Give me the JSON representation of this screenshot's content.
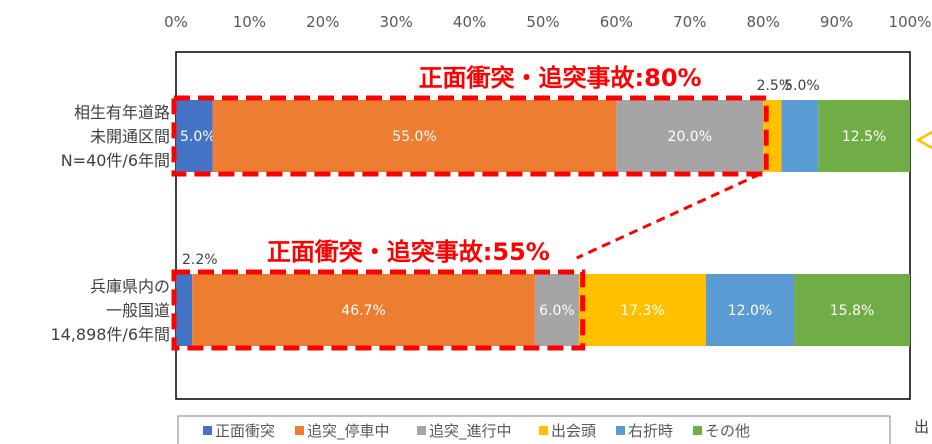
{
  "chart_data": {
    "type": "bar",
    "orientation": "horizontal",
    "stacked": true,
    "percent": true,
    "x_ticks": [
      "0%",
      "10%",
      "20%",
      "30%",
      "40%",
      "50%",
      "60%",
      "70%",
      "80%",
      "90%",
      "100%"
    ],
    "xlim": [
      0,
      100
    ],
    "categories": [
      {
        "lines": [
          "相生有年道路",
          "未開通区間",
          "N=40件/6年間"
        ]
      },
      {
        "lines": [
          "兵庫県内の",
          "一般国道",
          "14,898件/6年間"
        ]
      }
    ],
    "series": [
      {
        "name": "正面衝突",
        "color": "#4472c4",
        "values": [
          5.0,
          2.2
        ],
        "labels": [
          "5.0%",
          "2.2%"
        ]
      },
      {
        "name": "追突_停車中",
        "color": "#ed7d31",
        "values": [
          55.0,
          46.7
        ],
        "labels": [
          "55.0%",
          "46.7%"
        ]
      },
      {
        "name": "追突_進行中",
        "color": "#a5a5a5",
        "values": [
          20.0,
          6.0
        ],
        "labels": [
          "20.0%",
          "6.0%"
        ]
      },
      {
        "name": "出会頭",
        "color": "#ffc000",
        "values": [
          2.5,
          17.3
        ],
        "labels": [
          "2.5%",
          "17.3%"
        ]
      },
      {
        "name": "右折時",
        "color": "#5b9bd5",
        "values": [
          5.0,
          12.0
        ],
        "labels": [
          "5.0%",
          "12.0%"
        ]
      },
      {
        "name": "その他",
        "color": "#70ad47",
        "values": [
          12.5,
          15.8
        ],
        "labels": [
          "12.5%",
          "15.8%"
        ]
      }
    ],
    "annotations": [
      {
        "text": "正面衝突・追突事故:80%",
        "bar": 0,
        "from": 0,
        "to": 80
      },
      {
        "text": "正面衝突・追突事故:55%",
        "bar": 1,
        "from": 0,
        "to": 55
      }
    ],
    "legend": "bottom",
    "grid": false,
    "annotation_color": "#ff0000"
  }
}
